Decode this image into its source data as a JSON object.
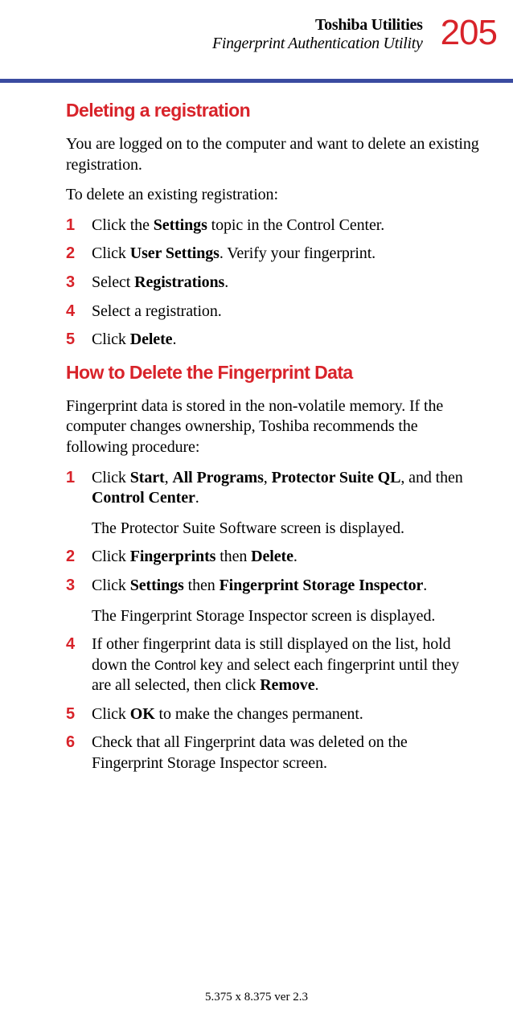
{
  "colors": {
    "accent": "#d8232a",
    "text": "#000000",
    "rule": "#3a4ba0"
  },
  "header": {
    "title": "Toshiba Utilities",
    "subtitle": "Fingerprint Authentication Utility",
    "page_number": "205"
  },
  "sections": [
    {
      "heading": "Deleting a registration",
      "intro": [
        "You are logged on to the computer and want to delete an existing registration.",
        "To delete an existing registration:"
      ],
      "steps": [
        {
          "num": "1",
          "html": "Click the <b>Settings</b> topic in the Control Center."
        },
        {
          "num": "2",
          "html": "Click <b>User Settings</b>. Verify your fingerprint."
        },
        {
          "num": "3",
          "html": "Select <b>Registrations</b>."
        },
        {
          "num": "4",
          "html": "Select a registration."
        },
        {
          "num": "5",
          "html": "Click <b>Delete</b>."
        }
      ]
    },
    {
      "heading": "How to Delete the Fingerprint Data",
      "intro": [
        "Fingerprint data is stored in the non-volatile memory. If the computer changes ownership, Toshiba recommends the following procedure:"
      ],
      "steps": [
        {
          "num": "1",
          "html": "Click <b>Start</b>, <b>All Programs</b>, <b>Protector Suite QL</b>, and then <b>Control Center</b>.",
          "after": "The Protector Suite Software screen is displayed."
        },
        {
          "num": "2",
          "html": "Click <b>Fingerprints</b> then <b>Delete</b>."
        },
        {
          "num": "3",
          "html": "Click <b>Settings</b> then <b>Fingerprint Storage Inspector</b>.",
          "after": "The Fingerprint Storage Inspector screen is displayed."
        },
        {
          "num": "4",
          "html": "If other fingerprint data is still displayed on the list, hold down the <span class=\"keycap\">Control</span> key and select each fingerprint until they are all selected, then click <b>Remove</b>."
        },
        {
          "num": "5",
          "html": "Click <b>OK</b> to make the changes permanent."
        },
        {
          "num": "6",
          "html": "Check that all Fingerprint data was deleted on the Fingerprint Storage Inspector screen."
        }
      ]
    }
  ],
  "footer": "5.375 x 8.375 ver 2.3"
}
